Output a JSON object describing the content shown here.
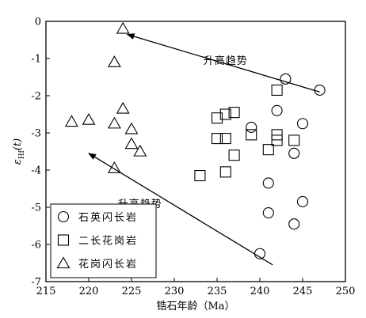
{
  "chart_data": {
    "type": "scatter",
    "xlabel": "锆石年龄（Ma）",
    "ylabel": "εHf(t)",
    "xlim": [
      215,
      250
    ],
    "ylim": [
      -7,
      0
    ],
    "x_ticks": [
      215,
      220,
      225,
      230,
      235,
      240,
      245,
      250
    ],
    "y_ticks": [
      0,
      -1,
      -2,
      -3,
      -4,
      -5,
      -6,
      -7
    ],
    "grid": false,
    "legend_position": "bottom-left",
    "series": [
      {
        "name": "石英闪长岩",
        "marker": "circle",
        "points": [
          {
            "x": 247.0,
            "y": -1.85
          },
          {
            "x": 243.0,
            "y": -1.55
          },
          {
            "x": 242.0,
            "y": -2.4
          },
          {
            "x": 239.0,
            "y": -2.85
          },
          {
            "x": 245.0,
            "y": -2.75
          },
          {
            "x": 244.0,
            "y": -3.55
          },
          {
            "x": 241.0,
            "y": -4.35
          },
          {
            "x": 245.0,
            "y": -4.85
          },
          {
            "x": 241.0,
            "y": -5.15
          },
          {
            "x": 244.0,
            "y": -5.45
          },
          {
            "x": 240.0,
            "y": -6.25
          }
        ]
      },
      {
        "name": "二长花岗岩",
        "marker": "square",
        "points": [
          {
            "x": 242.0,
            "y": -1.85
          },
          {
            "x": 237.0,
            "y": -2.45
          },
          {
            "x": 236.0,
            "y": -2.5
          },
          {
            "x": 235.0,
            "y": -2.6
          },
          {
            "x": 239.0,
            "y": -3.05
          },
          {
            "x": 242.0,
            "y": -3.05
          },
          {
            "x": 235.0,
            "y": -3.15
          },
          {
            "x": 236.0,
            "y": -3.15
          },
          {
            "x": 242.0,
            "y": -3.2
          },
          {
            "x": 244.0,
            "y": -3.2
          },
          {
            "x": 241.0,
            "y": -3.45
          },
          {
            "x": 237.0,
            "y": -3.6
          },
          {
            "x": 236.0,
            "y": -4.05
          },
          {
            "x": 233.0,
            "y": -4.15
          }
        ]
      },
      {
        "name": "花岗闪长岩",
        "marker": "triangle",
        "points": [
          {
            "x": 224.0,
            "y": -0.2
          },
          {
            "x": 223.0,
            "y": -1.1
          },
          {
            "x": 224.0,
            "y": -2.35
          },
          {
            "x": 218.0,
            "y": -2.7
          },
          {
            "x": 220.0,
            "y": -2.65
          },
          {
            "x": 223.0,
            "y": -2.75
          },
          {
            "x": 225.0,
            "y": -2.9
          },
          {
            "x": 225.0,
            "y": -3.3
          },
          {
            "x": 226.0,
            "y": -3.5
          },
          {
            "x": 223.0,
            "y": -3.95
          }
        ]
      }
    ],
    "annotations": [
      {
        "text": "升高趋势",
        "arrow_from": [
          247.0,
          -1.9
        ],
        "arrow_to": [
          224.5,
          -0.35
        ],
        "label_at": [
          236.0,
          -1.15
        ]
      },
      {
        "text": "升高趋势",
        "arrow_from": [
          241.5,
          -6.55
        ],
        "arrow_to": [
          220.0,
          -3.55
        ],
        "label_at": [
          226.0,
          -5.0
        ]
      }
    ]
  }
}
